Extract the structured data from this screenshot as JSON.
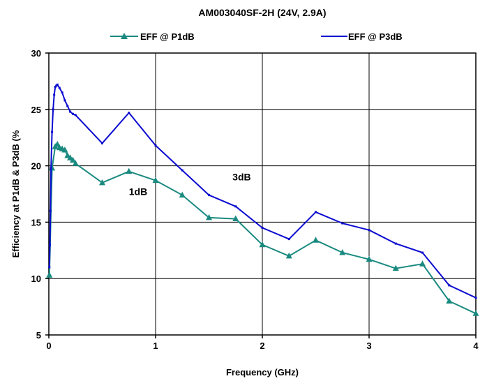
{
  "chart_data": {
    "type": "line",
    "title": "AM003040SF-2H (24V, 2.9A)",
    "xlabel": "Frequency (GHz)",
    "ylabel": "Efficiency at P1dB & P3dB (%",
    "xlim": [
      0,
      4
    ],
    "ylim": [
      5,
      30
    ],
    "xticks": [
      0,
      1,
      2,
      3,
      4
    ],
    "yticks": [
      5,
      10,
      15,
      20,
      25,
      30
    ],
    "grid": true,
    "legend_position": "top",
    "series": [
      {
        "name": "EFF @ P1dB",
        "color": "#1a8a80",
        "marker": "triangle",
        "x": [
          0.005,
          0.03,
          0.06,
          0.08,
          0.1,
          0.125,
          0.15,
          0.175,
          0.2,
          0.225,
          0.25,
          0.5,
          0.75,
          1.0,
          1.25,
          1.5,
          1.75,
          2.0,
          2.25,
          2.5,
          2.75,
          3.0,
          3.25,
          3.5,
          3.75,
          4.0
        ],
        "y": [
          10.3,
          19.8,
          21.7,
          21.9,
          21.6,
          21.5,
          21.4,
          20.9,
          20.7,
          20.5,
          20.2,
          18.5,
          19.5,
          18.7,
          17.4,
          15.4,
          15.3,
          13.0,
          12.0,
          13.4,
          12.3,
          11.7,
          10.9,
          11.3,
          8.0,
          6.9
        ]
      },
      {
        "name": "EFF @ P3dB",
        "color": "#0a0ad0",
        "marker": "dash",
        "x": [
          0.005,
          0.01,
          0.015,
          0.02,
          0.03,
          0.04,
          0.05,
          0.06,
          0.07,
          0.08,
          0.1,
          0.125,
          0.15,
          0.175,
          0.2,
          0.225,
          0.25,
          0.5,
          0.75,
          1.0,
          1.25,
          1.5,
          1.75,
          2.0,
          2.25,
          2.5,
          2.75,
          3.0,
          3.25,
          3.5,
          3.75,
          4.0
        ],
        "y": [
          11.0,
          13.0,
          16.0,
          19.8,
          23.0,
          25.0,
          26.3,
          27.0,
          27.1,
          27.2,
          26.9,
          26.5,
          25.8,
          25.3,
          24.8,
          24.6,
          24.5,
          22.0,
          24.7,
          21.8,
          19.6,
          17.4,
          16.4,
          14.5,
          13.5,
          15.9,
          14.9,
          14.3,
          13.1,
          12.3,
          9.4,
          8.3
        ]
      }
    ],
    "annotations": [
      {
        "text": "1dB",
        "x": 0.75,
        "y": 17.4
      },
      {
        "text": "3dB",
        "x": 1.72,
        "y": 18.7
      }
    ]
  }
}
